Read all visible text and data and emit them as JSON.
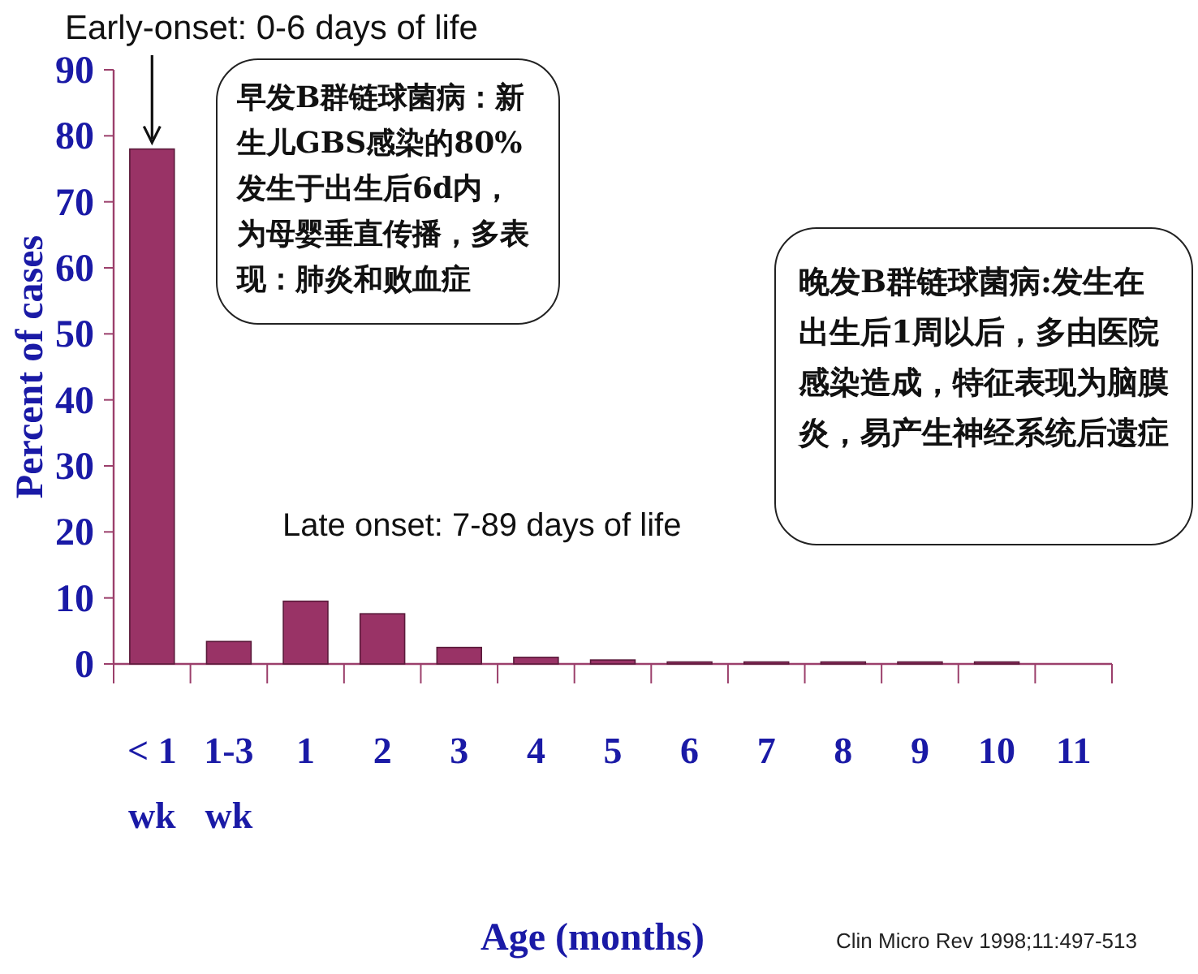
{
  "chart_data": {
    "type": "bar",
    "categories": [
      "< 1\nwk",
      "1-3\nwk",
      "1",
      "2",
      "3",
      "4",
      "5",
      "6",
      "7",
      "8",
      "9",
      "10",
      "11"
    ],
    "values": [
      78,
      3.4,
      9.5,
      7.6,
      2.5,
      1.0,
      0.6,
      0.3,
      0.3,
      0.3,
      0.3,
      0.3,
      0
    ],
    "color": "#993366",
    "ylim": [
      0,
      90
    ],
    "yticks": [
      0,
      10,
      20,
      30,
      40,
      50,
      60,
      70,
      80,
      90
    ],
    "xlabel": "Age (months)",
    "ylabel": "Percent of cases",
    "annotations": [
      {
        "text": "Early-onset: 0-6 days of life",
        "x": "< 1\nwk",
        "y": 78
      },
      "Late onset: 7-89 days of life",
      "早发B群链球菌病：新生儿GBS感染的80%发生于出生后6d内，为母婴垂直传播，多表现：肺炎和败血症",
      "晚发B群链球菌病:发生在出生后1周以后，多由医院感染造成，特征表现为脑膜炎，易产生神经系统后遗症",
      "Clin Micro Rev 1998;11:497-513"
    ]
  }
}
